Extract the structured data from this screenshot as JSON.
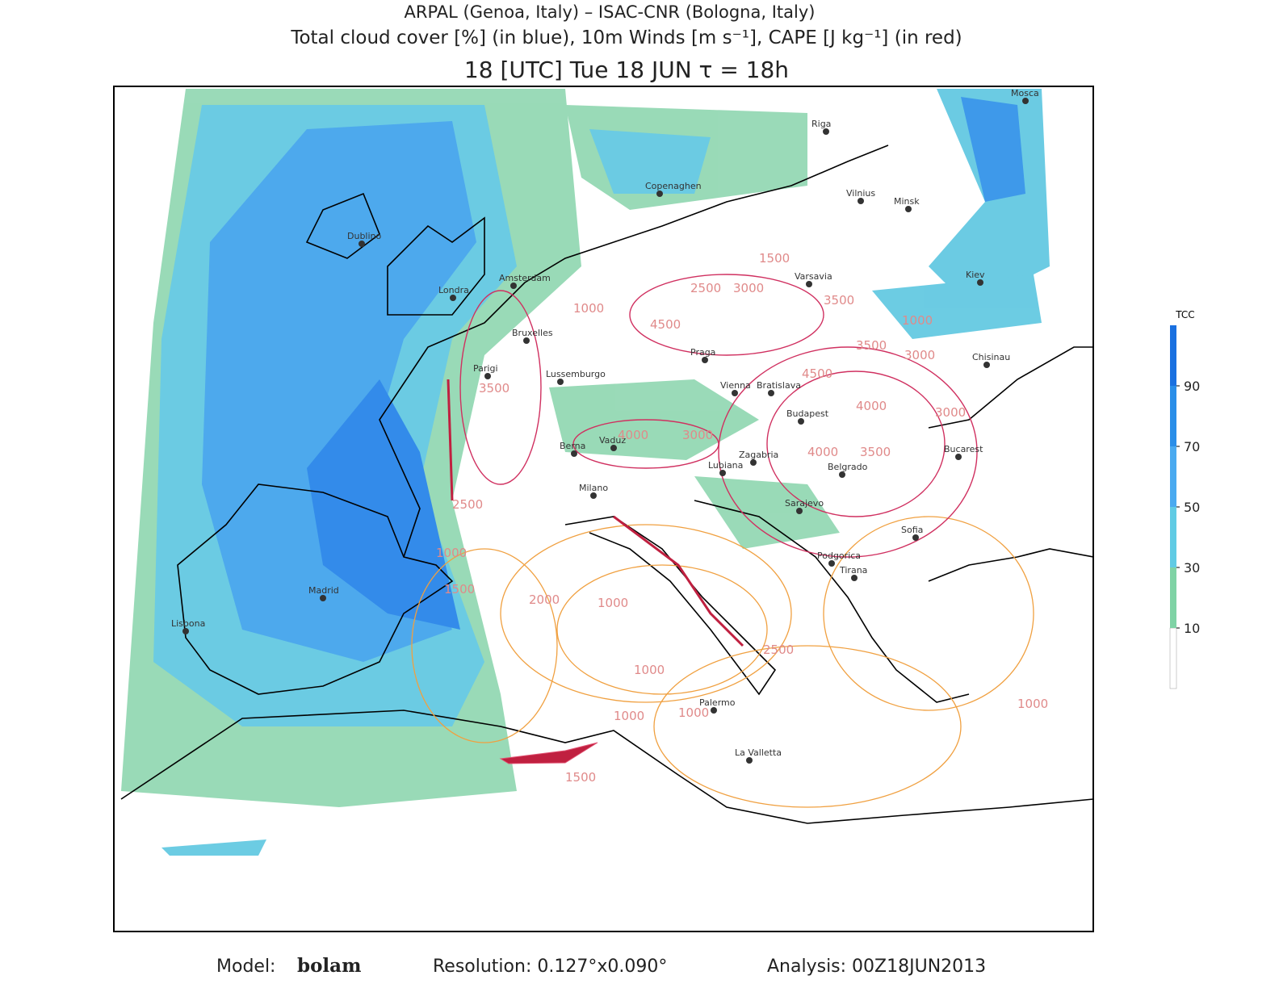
{
  "header": {
    "lines": [
      "ARPAL (Genoa, Italy)  –  ISAC-CNR (Bologna, Italy)",
      "Total cloud cover [%] (in blue), 10m Winds [m s⁻¹], CAPE [J kg⁻¹] (in red)",
      "18 [UTC] Tue 18 JUN  τ = 18h"
    ]
  },
  "map": {
    "cities": [
      "Mosca",
      "Riga",
      "Copenaghen",
      "Vilnius",
      "Minsk",
      "Dublino",
      "Varsavia",
      "Kiev",
      "Londra",
      "Amsterdam",
      "Bruxelles",
      "Praga",
      "Chisinau",
      "Parigi",
      "Lussemburgo",
      "Vienna",
      "Bratislava",
      "Budapest",
      "Berna",
      "Vaduz",
      "Zagabria",
      "Lubiana",
      "Belgrado",
      "Bucarest",
      "Milano",
      "Sarajevo",
      "Sofia",
      "Podgorica",
      "Tirana",
      "Madrid",
      "Lisbona",
      "Palermo",
      "La Valletta"
    ],
    "cape_labels": [
      1500,
      2500,
      3000,
      3500,
      1000,
      4500,
      3500,
      1000,
      3000,
      4500,
      3500,
      4000,
      3000,
      4000,
      3000,
      3500,
      4000,
      2500,
      1000,
      1500,
      2000,
      1000,
      2500,
      1000,
      1000,
      1000,
      1500,
      1000
    ]
  },
  "colorbar": {
    "title": "TCC",
    "ticks": [
      10,
      30,
      50,
      70,
      90
    ]
  },
  "footer": {
    "model_label": "Model:",
    "model": "bolam",
    "resolution": "Resolution: 0.127°x0.090°",
    "analysis": "Analysis: 00Z18JUN2013"
  }
}
